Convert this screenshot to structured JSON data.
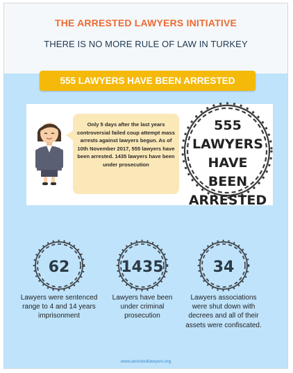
{
  "header": {
    "org_title": "THE ARRESTED LAWYERS INITIATIVE",
    "tagline": "THERE IS NO MORE RULE OF LAW IN TURKEY"
  },
  "banner": {
    "text": "555 LAWYERS HAVE BEEN ARRESTED"
  },
  "feature": {
    "bubble_text": "Only 5 days after the last years controversial failed coup attempt mass arrests against lawyers begun. As of 10th November 2017, 555 lawyers have been arrested. 1435 lawyers have been under prosecution",
    "wreath_text": "555 LAWYERS HAVE BEEN ARRESTED",
    "person_icon": "businesswoman-icon",
    "wreath_icon": "barbed-wire-wreath-icon"
  },
  "stats": [
    {
      "number": "62",
      "description": "Lawyers were sentenced range to 4 and 14 years imprisonment"
    },
    {
      "number": "1435",
      "description": "Lawyers have been under criminal prosecution"
    },
    {
      "number": "34",
      "description": "Lawyers associations were shut down with decrees and all of their assets were confiscated."
    }
  ],
  "footer": {
    "url": "www.arrestedlawyers.org"
  },
  "colors": {
    "title_orange": "#ec6a33",
    "tagline_navy": "#1d3850",
    "banner_yellow": "#f5b90a",
    "background_blue": "#bfe3fb",
    "bubble_cream": "#fbe8b8"
  }
}
